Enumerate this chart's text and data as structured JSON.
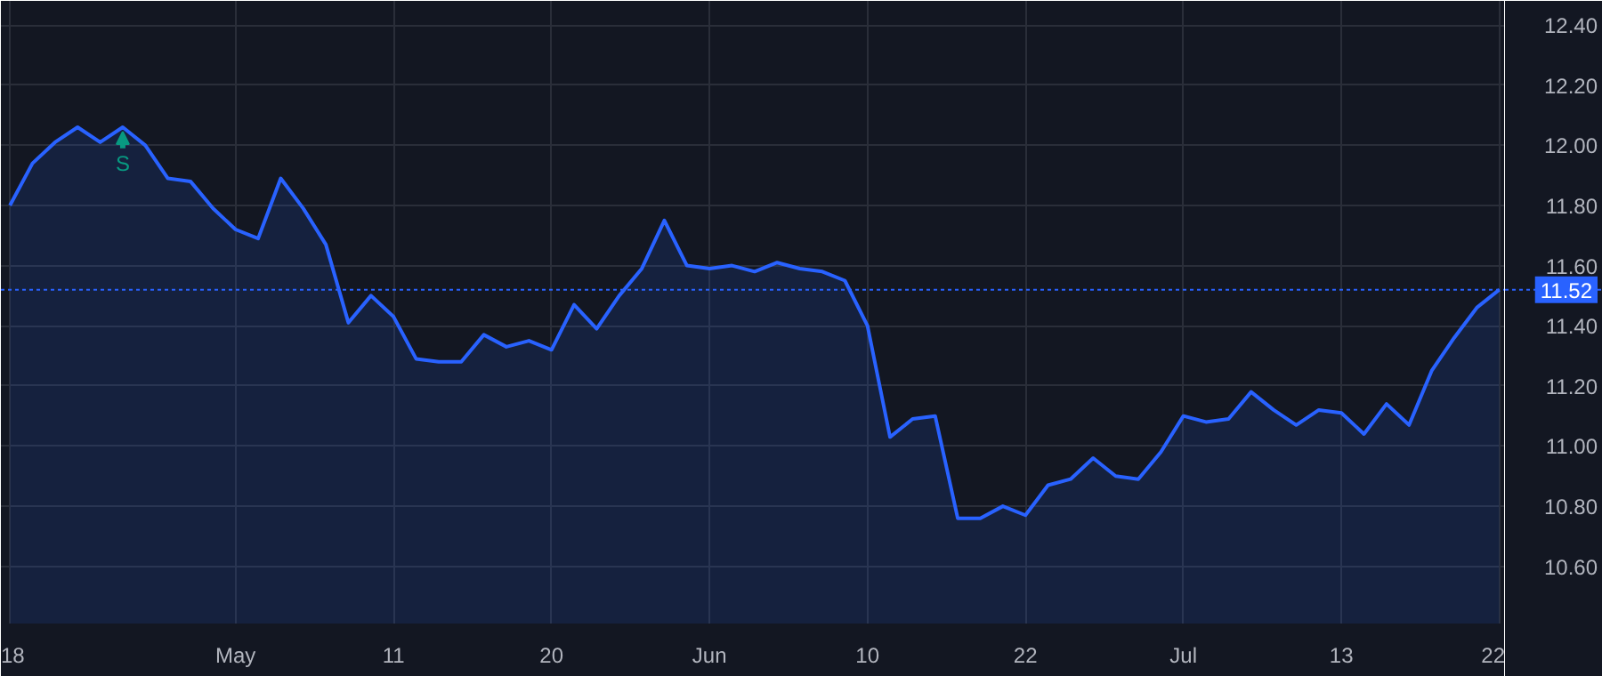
{
  "chart_data": {
    "type": "area",
    "categories": [
      "18",
      null,
      null,
      null,
      null,
      null,
      null,
      null,
      null,
      null,
      "May",
      null,
      null,
      null,
      null,
      null,
      null,
      "11",
      null,
      null,
      null,
      null,
      null,
      null,
      "20",
      null,
      null,
      null,
      null,
      null,
      null,
      "Jun",
      null,
      null,
      null,
      null,
      null,
      null,
      "10",
      null,
      null,
      null,
      null,
      null,
      null,
      "22",
      null,
      null,
      null,
      null,
      null,
      null,
      "Jul",
      null,
      null,
      null,
      null,
      null,
      null,
      "13",
      null,
      null,
      null,
      null,
      null,
      null,
      "22"
    ],
    "series": [
      {
        "color": "#2962ff",
        "values": [
          11.8,
          11.94,
          12.01,
          12.06,
          12.01,
          12.06,
          12.0,
          11.89,
          11.88,
          11.79,
          11.72,
          11.69,
          11.89,
          11.79,
          11.67,
          11.41,
          11.5,
          11.43,
          11.29,
          11.28,
          11.28,
          11.37,
          11.33,
          11.35,
          11.32,
          11.47,
          11.39,
          11.5,
          11.59,
          11.75,
          11.6,
          11.59,
          11.6,
          11.58,
          11.61,
          11.59,
          11.58,
          11.55,
          11.4,
          11.03,
          11.09,
          11.1,
          10.76,
          10.76,
          10.8,
          10.77,
          10.87,
          10.89,
          10.96,
          10.9,
          10.89,
          10.98,
          11.1,
          11.08,
          11.09,
          11.18,
          11.12,
          11.07,
          11.12,
          11.11,
          11.04,
          11.14,
          11.07,
          11.25,
          11.36,
          11.46,
          11.52
        ]
      }
    ],
    "ylim": [
      10.41,
      12.48
    ],
    "yticks": [
      {
        "value": 10.6,
        "label": "10.60"
      },
      {
        "value": 10.8,
        "label": "10.80"
      },
      {
        "value": 11.0,
        "label": "11.00"
      },
      {
        "value": 11.2,
        "label": "11.20"
      },
      {
        "value": 11.4,
        "label": "11.40"
      },
      {
        "value": 11.6,
        "label": "11.60"
      },
      {
        "value": 11.8,
        "label": "11.80"
      },
      {
        "value": 12.0,
        "label": "12.00"
      },
      {
        "value": 12.2,
        "label": "12.20"
      },
      {
        "value": 12.4,
        "label": "12.40"
      }
    ],
    "grid": true,
    "ref_lines": [
      {
        "axis": "y",
        "value": 11.52,
        "label": "11.52",
        "color": "#2962ff",
        "line_style": "dotted"
      }
    ],
    "annotations": [
      {
        "text": "S",
        "y": 12.06
      }
    ]
  }
}
